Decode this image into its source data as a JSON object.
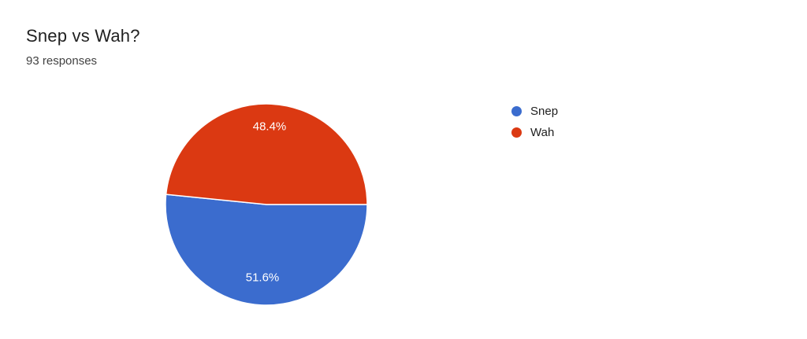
{
  "header": {
    "title": "Snep vs Wah?",
    "subtitle": "93 responses"
  },
  "chart_data": {
    "type": "pie",
    "title": "Snep vs Wah?",
    "subtitle": "93 responses",
    "categories": [
      "Snep",
      "Wah"
    ],
    "values": [
      51.6,
      48.4
    ],
    "slice_labels": [
      "51.6%",
      "48.4%"
    ],
    "colors": [
      "#3B6CCE",
      "#DB3912"
    ],
    "label_text_color": "#ffffff",
    "legend_position": "right",
    "start_angle_deg": 0,
    "direction": "clockwise"
  },
  "legend": {
    "items": [
      {
        "label": "Snep",
        "color": "#3B6CCE"
      },
      {
        "label": "Wah",
        "color": "#DB3912"
      }
    ]
  }
}
